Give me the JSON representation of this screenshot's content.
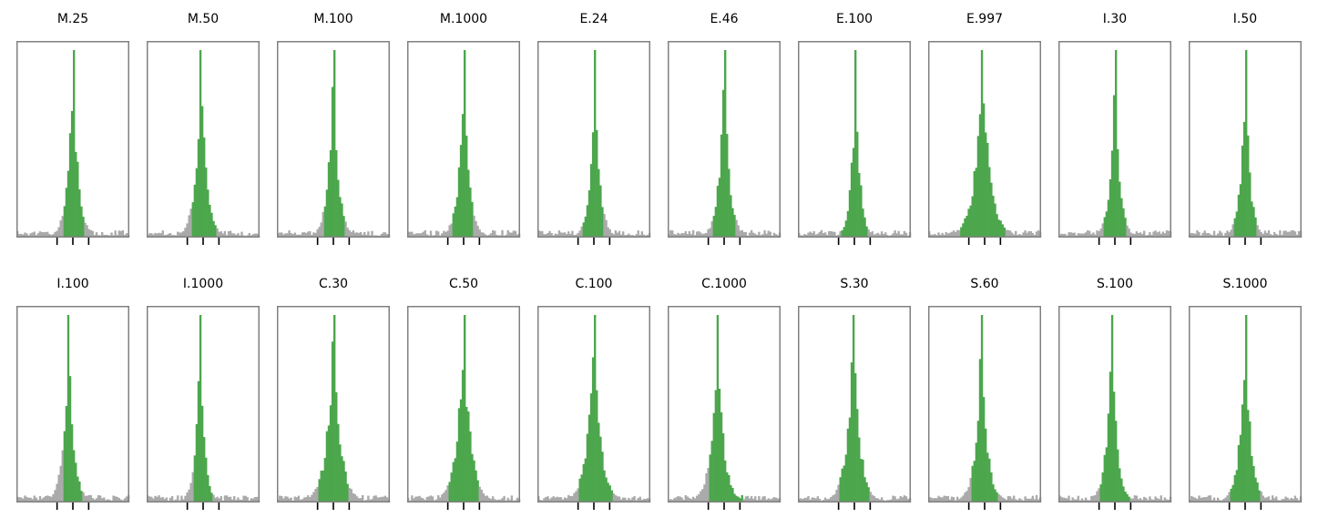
{
  "figure": {
    "colors": {
      "inner": "#4ca64c",
      "outer": "#aaaaaa",
      "frame": "#808080",
      "tick": "#000000"
    }
  },
  "chart_data": [
    {
      "type": "bar",
      "title": "M.25",
      "peak_x": 0.5,
      "spread": 0.12,
      "green_range": [
        0.42,
        0.6
      ]
    },
    {
      "type": "bar",
      "title": "M.50",
      "peak_x": 0.48,
      "spread": 0.13,
      "green_range": [
        0.4,
        0.61
      ]
    },
    {
      "type": "bar",
      "title": "M.100",
      "peak_x": 0.5,
      "spread": 0.12,
      "green_range": [
        0.42,
        0.6
      ]
    },
    {
      "type": "bar",
      "title": "M.1000",
      "peak_x": 0.5,
      "spread": 0.12,
      "green_range": [
        0.4,
        0.58
      ]
    },
    {
      "type": "bar",
      "title": "E.24",
      "peak_x": 0.51,
      "spread": 0.11,
      "green_range": [
        0.4,
        0.59
      ]
    },
    {
      "type": "bar",
      "title": "E.46",
      "peak_x": 0.5,
      "spread": 0.12,
      "green_range": [
        0.4,
        0.6
      ]
    },
    {
      "type": "bar",
      "title": "E.100",
      "peak_x": 0.51,
      "spread": 0.1,
      "green_range": [
        0.38,
        0.62
      ]
    },
    {
      "type": "bar",
      "title": "E.997",
      "peak_x": 0.48,
      "spread": 0.18,
      "green_range": [
        0.28,
        0.68
      ]
    },
    {
      "type": "bar",
      "title": "I.30",
      "peak_x": 0.5,
      "spread": 0.11,
      "green_range": [
        0.4,
        0.6
      ]
    },
    {
      "type": "bar",
      "title": "I.50",
      "peak_x": 0.5,
      "spread": 0.11,
      "green_range": [
        0.4,
        0.6
      ]
    },
    {
      "type": "bar",
      "title": "I.100",
      "peak_x": 0.46,
      "spread": 0.12,
      "green_range": [
        0.42,
        0.58
      ]
    },
    {
      "type": "bar",
      "title": "I.1000",
      "peak_x": 0.47,
      "spread": 0.1,
      "green_range": [
        0.42,
        0.58
      ]
    },
    {
      "type": "bar",
      "title": "C.30",
      "peak_x": 0.5,
      "spread": 0.16,
      "green_range": [
        0.36,
        0.63
      ]
    },
    {
      "type": "bar",
      "title": "C.50",
      "peak_x": 0.5,
      "spread": 0.16,
      "green_range": [
        0.36,
        0.63
      ]
    },
    {
      "type": "bar",
      "title": "C.100",
      "peak_x": 0.5,
      "spread": 0.16,
      "green_range": [
        0.36,
        0.66
      ]
    },
    {
      "type": "bar",
      "title": "C.1000",
      "peak_x": 0.44,
      "spread": 0.14,
      "green_range": [
        0.36,
        0.66
      ]
    },
    {
      "type": "bar",
      "title": "S.30",
      "peak_x": 0.49,
      "spread": 0.15,
      "green_range": [
        0.36,
        0.64
      ]
    },
    {
      "type": "bar",
      "title": "S.60",
      "peak_x": 0.47,
      "spread": 0.13,
      "green_range": [
        0.38,
        0.62
      ]
    },
    {
      "type": "bar",
      "title": "S.100",
      "peak_x": 0.47,
      "spread": 0.12,
      "green_range": [
        0.36,
        0.64
      ]
    },
    {
      "type": "bar",
      "title": "S.1000",
      "peak_x": 0.5,
      "spread": 0.13,
      "green_range": [
        0.36,
        0.64
      ]
    }
  ]
}
